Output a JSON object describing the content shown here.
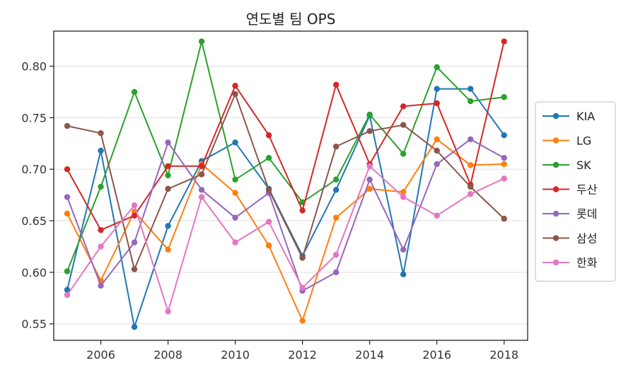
{
  "chart_data": {
    "type": "line",
    "title": "연도별 팀 OPS",
    "xlabel": "",
    "ylabel": "",
    "x": [
      2005,
      2006,
      2007,
      2008,
      2009,
      2010,
      2011,
      2012,
      2013,
      2014,
      2015,
      2016,
      2017,
      2018
    ],
    "xlim": [
      2004.6,
      2018.7
    ],
    "ylim": [
      0.534,
      0.834
    ],
    "xticks": [
      2006,
      2008,
      2010,
      2012,
      2014,
      2016,
      2018
    ],
    "yticks": [
      0.55,
      0.6,
      0.65,
      0.7,
      0.75,
      0.8
    ],
    "ytick_labels": [
      "0.55",
      "0.60",
      "0.65",
      "0.70",
      "0.75",
      "0.80"
    ],
    "grid": "horizontal",
    "legend_position": "right-outside",
    "series": [
      {
        "name": "KIA",
        "color": "#1f77b4",
        "values": [
          0.583,
          0.718,
          0.547,
          0.645,
          0.708,
          0.726,
          0.681,
          0.616,
          0.68,
          0.752,
          0.598,
          0.778,
          0.778,
          0.733
        ]
      },
      {
        "name": "LG",
        "color": "#ff7f0e",
        "values": [
          0.657,
          0.592,
          0.659,
          0.622,
          0.705,
          0.677,
          0.626,
          0.553,
          0.653,
          0.681,
          0.678,
          0.729,
          0.704,
          0.705
        ]
      },
      {
        "name": "SK",
        "color": "#2ca02c",
        "values": [
          0.601,
          0.683,
          0.775,
          0.694,
          0.824,
          0.69,
          0.711,
          0.668,
          0.69,
          0.753,
          0.715,
          0.799,
          0.766,
          0.77
        ]
      },
      {
        "name": "두산",
        "color": "#d62728",
        "values": [
          0.7,
          0.641,
          0.655,
          0.703,
          0.703,
          0.781,
          0.733,
          0.66,
          0.782,
          0.705,
          0.761,
          0.764,
          0.685,
          0.824
        ]
      },
      {
        "name": "롯데",
        "color": "#9467bd",
        "values": [
          0.673,
          0.587,
          0.629,
          0.726,
          0.68,
          0.653,
          0.677,
          0.582,
          0.6,
          0.69,
          0.622,
          0.705,
          0.729,
          0.711
        ]
      },
      {
        "name": "삼성",
        "color": "#8c564b",
        "values": [
          0.742,
          0.735,
          0.603,
          0.681,
          0.695,
          0.773,
          0.68,
          0.614,
          0.722,
          0.737,
          0.743,
          0.718,
          0.683,
          0.652
        ]
      },
      {
        "name": "한화",
        "color": "#e377c2",
        "values": [
          0.578,
          0.625,
          0.665,
          0.562,
          0.673,
          0.629,
          0.649,
          0.585,
          0.617,
          0.703,
          0.673,
          0.655,
          0.676,
          0.691
        ]
      }
    ]
  }
}
